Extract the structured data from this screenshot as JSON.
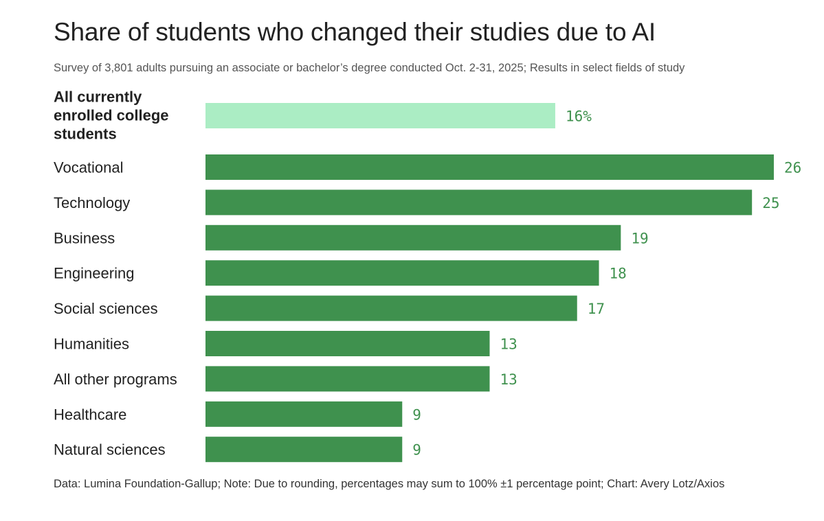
{
  "header": {
    "title": "Share of students who changed their studies due to AI",
    "subtitle": "Survey of 3,801 adults pursuing an associate or bachelor’s degree conducted Oct. 2-31, 2025; Results in select fields of study"
  },
  "footer": {
    "source": "Data: Lumina Foundation-Gallup; Note: Due to rounding, percentages may sum to 100% ±1 percentage point; Chart: Avery Lotz/Axios"
  },
  "chart_data": {
    "type": "bar",
    "orientation": "horizontal",
    "title": "Share of students who changed their studies due to AI",
    "xlabel": "",
    "ylabel": "",
    "xlim": [
      0,
      26
    ],
    "grid": false,
    "categories": [
      "All currently enrolled college students",
      "Vocational",
      "Technology",
      "Business",
      "Engineering",
      "Social sciences",
      "Humanities",
      "All other programs",
      "Healthcare",
      "Natural sciences"
    ],
    "values": [
      16,
      26,
      25,
      19,
      18,
      17,
      13,
      13,
      9,
      9
    ],
    "value_labels": [
      "16%",
      "26",
      "25",
      "19",
      "18",
      "17",
      "13",
      "13",
      "9",
      "9"
    ],
    "highlight_index": 0,
    "colors": {
      "highlight_bar": "#abedc4",
      "bar": "#3f914e",
      "value_text": "#3f914e"
    }
  }
}
